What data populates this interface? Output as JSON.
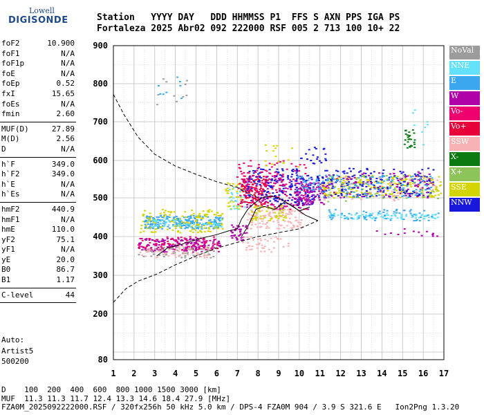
{
  "logo": {
    "line1": "Lowell",
    "line2": "DIGISONDE"
  },
  "header": {
    "line1": "Station   YYYY DAY   DDD HHMMSS P1  FFS S AXN PPS IGA PS",
    "line2": "Fortaleza 2025 Abr02 092 222000 RSF 005 2 713 100 10+ 22"
  },
  "params_groups": [
    [
      [
        "foF2",
        "10.900"
      ],
      [
        "foF1",
        "N/A"
      ],
      [
        "foF1p",
        "N/A"
      ],
      [
        "foE",
        "N/A"
      ],
      [
        "foEp",
        "0.52"
      ],
      [
        "fxI",
        "15.65"
      ],
      [
        "foEs",
        "N/A"
      ],
      [
        "fmin",
        "2.60"
      ]
    ],
    [
      [
        "MUF(D)",
        "27.89"
      ],
      [
        "M(D)",
        "2.56"
      ],
      [
        "D",
        "N/A"
      ]
    ],
    [
      [
        "h`F",
        "349.0"
      ],
      [
        "h`F2",
        "349.0"
      ],
      [
        "h`E",
        "N/A"
      ],
      [
        "h`Es",
        "N/A"
      ]
    ],
    [
      [
        "hmF2",
        "440.9"
      ],
      [
        "hmF1",
        "N/A"
      ],
      [
        "hmE",
        "110.0"
      ],
      [
        "yF2",
        "75.1"
      ],
      [
        "yF1",
        "N/A"
      ],
      [
        "yE",
        "20.0"
      ],
      [
        "B0",
        "86.7"
      ],
      [
        "B1",
        "1.17"
      ]
    ],
    [
      [
        "C-level",
        "44"
      ]
    ]
  ],
  "auto": {
    "line1": "Auto:",
    "line2": "Artist5",
    "line3": "500200"
  },
  "footer": {
    "line1": "D    100  200  400  600  800 1000 1500 3000 [km]",
    "line2": "MUF  11.3 11.3 11.7 12.4 13.3 14.6 18.4 27.9 [MHz]",
    "line3": "FZA0M_2025092222000.RSF / 320fx256h 50 kHz 5.0 km / DPS-4 FZA0M 904 / 3.9 S 321.6 E   Ion2Png 1.3.20"
  },
  "legend": [
    {
      "label": "NoVal",
      "color": "#9c9c9c"
    },
    {
      "label": "NNE",
      "color": "#63e1fb"
    },
    {
      "label": "E",
      "color": "#3aa7ef"
    },
    {
      "label": "W",
      "color": "#b000a8"
    },
    {
      "label": "Vo-",
      "color": "#f0006e"
    },
    {
      "label": "Vo+",
      "color": "#e8003a"
    },
    {
      "label": "SSW",
      "color": "#f7b2b6"
    },
    {
      "label": "X-",
      "color": "#0b7a11"
    },
    {
      "label": "X+",
      "color": "#8cc45a"
    },
    {
      "label": "SSE",
      "color": "#d3d400"
    },
    {
      "label": "NNW",
      "color": "#1818dc"
    }
  ],
  "chart_data": {
    "type": "scatter",
    "title": "",
    "xlabel": "",
    "ylabel": "",
    "xlim": [
      1,
      17
    ],
    "ylim": [
      80,
      900
    ],
    "y_ticks": [
      80,
      200,
      300,
      400,
      500,
      600,
      700,
      800,
      900
    ],
    "x_ticks": [
      1,
      2,
      3,
      4,
      5,
      6,
      7,
      8,
      9,
      10,
      11,
      12,
      13,
      14,
      15,
      16,
      17
    ],
    "grid": true,
    "profile_curve": [
      [
        3.1,
        350
      ],
      [
        3.6,
        370
      ],
      [
        4.3,
        380
      ],
      [
        5.2,
        395
      ],
      [
        6.0,
        405
      ],
      [
        6.6,
        415
      ],
      [
        7.0,
        420
      ],
      [
        7.2,
        445
      ],
      [
        7.5,
        470
      ],
      [
        7.8,
        485
      ],
      [
        8.2,
        500
      ],
      [
        8.6,
        505
      ],
      [
        9.0,
        500
      ],
      [
        9.3,
        490
      ],
      [
        9.6,
        480
      ],
      [
        9.9,
        470
      ],
      [
        10.3,
        455
      ],
      [
        10.9,
        441
      ]
    ],
    "profile_dashed": [
      [
        1,
        230
      ],
      [
        1.6,
        265
      ],
      [
        2.2,
        285
      ],
      [
        3.1,
        303
      ],
      [
        4.0,
        327
      ],
      [
        5.0,
        350
      ],
      [
        6.0,
        370
      ],
      [
        7.0,
        385
      ],
      [
        8.0,
        400
      ],
      [
        9.0,
        410
      ],
      [
        10.0,
        420
      ],
      [
        10.9,
        441
      ]
    ],
    "x_trace_curve": [
      [
        1,
        772
      ],
      [
        1.5,
        720
      ],
      [
        2.2,
        660
      ],
      [
        3.0,
        616
      ],
      [
        4.0,
        585
      ],
      [
        5.0,
        563
      ],
      [
        6.0,
        543
      ],
      [
        7.0,
        528
      ],
      [
        7.6,
        510
      ],
      [
        8.0,
        500
      ]
    ],
    "trace_line": [
      [
        7.2,
        400
      ],
      [
        7.5,
        425
      ],
      [
        7.9,
        470
      ],
      [
        8.3,
        478
      ],
      [
        8.8,
        470
      ],
      [
        9.3,
        490
      ],
      [
        9.7,
        478
      ],
      [
        10.0,
        466
      ],
      [
        10.5,
        476
      ]
    ],
    "clusters": [
      {
        "x": [
          2.2,
          6.2
        ],
        "y": [
          360,
          395
        ],
        "color": "#b000a8",
        "n": 170
      },
      {
        "x": [
          2.2,
          6.2
        ],
        "y": [
          365,
          400
        ],
        "color": "#f0006e",
        "n": 80
      },
      {
        "x": [
          2.2,
          6.0
        ],
        "y": [
          345,
          372
        ],
        "color": "#9c9c9c",
        "n": 60
      },
      {
        "x": [
          2.3,
          5.8
        ],
        "y": [
          345,
          375
        ],
        "color": "#f7b2b6",
        "n": 60
      },
      {
        "x": [
          2.5,
          6.3
        ],
        "y": [
          420,
          455
        ],
        "color": "#3aa7ef",
        "n": 230
      },
      {
        "x": [
          2.3,
          6.3
        ],
        "y": [
          410,
          470
        ],
        "color": "#d3d400",
        "n": 140
      },
      {
        "x": [
          2.5,
          6.3
        ],
        "y": [
          425,
          445
        ],
        "color": "#63e1fb",
        "n": 50
      },
      {
        "x": [
          6.4,
          7.3
        ],
        "y": [
          470,
          540
        ],
        "color": "#d3d400",
        "n": 40
      },
      {
        "x": [
          6.6,
          7.4
        ],
        "y": [
          470,
          530
        ],
        "color": "#63e1fb",
        "n": 30
      },
      {
        "x": [
          6.7,
          7.5
        ],
        "y": [
          390,
          430
        ],
        "color": "#b000a8",
        "n": 40
      },
      {
        "x": [
          7.2,
          8.5
        ],
        "y": [
          480,
          560
        ],
        "color": "#e8003a",
        "n": 120
      },
      {
        "x": [
          7.5,
          10.2
        ],
        "y": [
          420,
          470
        ],
        "color": "#f7b2b6",
        "n": 120
      },
      {
        "x": [
          7.2,
          10.5
        ],
        "y": [
          470,
          560
        ],
        "color": "#b000a8",
        "n": 140
      },
      {
        "x": [
          7.5,
          10.0
        ],
        "y": [
          480,
          580
        ],
        "color": "#1818dc",
        "n": 120
      },
      {
        "x": [
          7.0,
          10.5
        ],
        "y": [
          470,
          600
        ],
        "color": "#f0006e",
        "n": 130
      },
      {
        "x": [
          7.6,
          9.4
        ],
        "y": [
          440,
          480
        ],
        "color": "#d3d400",
        "n": 50
      },
      {
        "x": [
          7.2,
          9.6
        ],
        "y": [
          360,
          400
        ],
        "color": "#f7b2b6",
        "n": 40
      },
      {
        "x": [
          9.8,
          11.0
        ],
        "y": [
          480,
          560
        ],
        "color": "#1818dc",
        "n": 60
      },
      {
        "x": [
          9.8,
          11.2
        ],
        "y": [
          480,
          540
        ],
        "color": "#b000a8",
        "n": 80
      },
      {
        "x": [
          9.8,
          11.1
        ],
        "y": [
          520,
          560
        ],
        "color": "#3aa7ef",
        "n": 30
      },
      {
        "x": [
          10.0,
          11.3
        ],
        "y": [
          590,
          640
        ],
        "color": "#1818dc",
        "n": 20
      },
      {
        "x": [
          11.1,
          16.9
        ],
        "y": [
          500,
          560
        ],
        "color": "#d3d400",
        "n": 260
      },
      {
        "x": [
          11.1,
          16.5
        ],
        "y": [
          500,
          580
        ],
        "color": "#1818dc",
        "n": 180
      },
      {
        "x": [
          11.1,
          16.5
        ],
        "y": [
          500,
          570
        ],
        "color": "#b000a8",
        "n": 90
      },
      {
        "x": [
          11.1,
          16.5
        ],
        "y": [
          500,
          560
        ],
        "color": "#3aa7ef",
        "n": 110
      },
      {
        "x": [
          11.4,
          16.8
        ],
        "y": [
          445,
          460
        ],
        "color": "#63e1fb",
        "n": 90
      },
      {
        "x": [
          11.4,
          16.8
        ],
        "y": [
          440,
          470
        ],
        "color": "#3aa7ef",
        "n": 60
      },
      {
        "x": [
          11.2,
          16.8
        ],
        "y": [
          490,
          560
        ],
        "color": "#f7b2b6",
        "n": 50
      },
      {
        "x": [
          11.2,
          16.8
        ],
        "y": [
          490,
          560
        ],
        "color": "#8cc45a",
        "n": 30
      },
      {
        "x": [
          13.2,
          16.7
        ],
        "y": [
          400,
          420
        ],
        "color": "#b000a8",
        "n": 14
      },
      {
        "x": [
          3.0,
          4.6
        ],
        "y": [
          745,
          825
        ],
        "color": "#9c9c9c",
        "n": 10
      },
      {
        "x": [
          3.0,
          4.6
        ],
        "y": [
          745,
          825
        ],
        "color": "#3aa7ef",
        "n": 8
      },
      {
        "x": [
          15.1,
          15.6
        ],
        "y": [
          630,
          680
        ],
        "color": "#0b7a11",
        "n": 25
      },
      {
        "x": [
          15.5,
          16.8
        ],
        "y": [
          640,
          740
        ],
        "color": "#63e1fb",
        "n": 8
      },
      {
        "x": [
          8.3,
          10.0
        ],
        "y": [
          580,
          640
        ],
        "color": "#d3d400",
        "n": 16
      }
    ]
  }
}
